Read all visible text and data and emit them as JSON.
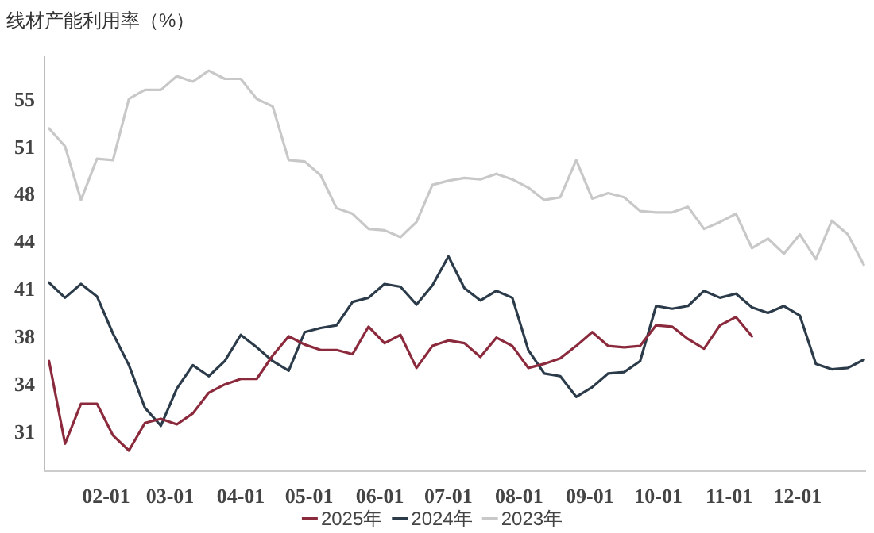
{
  "chart_data": {
    "type": "line",
    "title": "线材产能利用率（%）",
    "x": [
      "--01-07",
      "--01-14",
      "--01-21",
      "--01-28",
      "--02-04",
      "--02-11",
      "--02-18",
      "--02-25",
      "--03-04",
      "--03-11",
      "--03-18",
      "--03-25",
      "--04-01",
      "--04-08",
      "--04-15",
      "--04-22",
      "--04-29",
      "--05-06",
      "--05-13",
      "--05-20",
      "--05-27",
      "--06-03",
      "--06-10",
      "--06-17",
      "--06-24",
      "--07-01",
      "--07-08",
      "--07-15",
      "--07-22",
      "--07-29",
      "--08-05",
      "--08-12",
      "--08-19",
      "--08-26",
      "--09-02",
      "--09-09",
      "--09-16",
      "--09-23",
      "--09-30",
      "--10-07",
      "--10-14",
      "--10-21",
      "--10-28",
      "--11-04",
      "--11-11",
      "--11-18",
      "--11-25",
      "--12-02",
      "--12-09",
      "--12-16",
      "--12-23",
      "--12-30"
    ],
    "series": [
      {
        "name": "2025年",
        "color": "#8b2a3c",
        "values": [
          35.7,
          29.7,
          32.6,
          32.6,
          30.3,
          29.2,
          31.2,
          31.5,
          31.1,
          31.9,
          33.4,
          34.0,
          34.4,
          34.4,
          36.1,
          37.5,
          36.9,
          36.5,
          36.5,
          36.2,
          38.2,
          37.0,
          37.6,
          35.2,
          36.8,
          37.2,
          37.0,
          36.0,
          37.4,
          36.8,
          35.2,
          35.5,
          35.9,
          36.8,
          37.8,
          36.8,
          36.7,
          36.8,
          38.3,
          38.2,
          37.3,
          36.6,
          38.3,
          38.9,
          37.5,
          null,
          null,
          null,
          null,
          null,
          null,
          null
        ]
      },
      {
        "name": "2024年",
        "color": "#2c3b4a",
        "values": [
          41.4,
          40.3,
          41.3,
          40.4,
          37.7,
          35.4,
          32.3,
          31.0,
          33.7,
          35.4,
          34.6,
          35.7,
          37.6,
          36.7,
          35.7,
          35.0,
          37.8,
          38.1,
          38.3,
          40.0,
          40.3,
          41.3,
          41.1,
          39.8,
          41.2,
          43.3,
          41.0,
          40.1,
          40.8,
          40.3,
          36.5,
          34.8,
          34.6,
          33.1,
          33.8,
          34.8,
          34.9,
          35.7,
          39.7,
          39.5,
          39.7,
          40.8,
          40.3,
          40.6,
          39.6,
          39.2,
          39.7,
          39.0,
          35.5,
          35.1,
          35.2,
          35.8
        ]
      },
      {
        "name": "2023年",
        "color": "#c8c8c8",
        "values": [
          52.6,
          51.3,
          47.4,
          50.4,
          50.3,
          54.75,
          55.4,
          55.4,
          56.4,
          56.0,
          56.8,
          56.2,
          56.2,
          54.75,
          54.2,
          50.3,
          50.2,
          49.2,
          46.8,
          46.4,
          45.3,
          45.2,
          44.7,
          45.8,
          48.5,
          48.8,
          49.0,
          48.9,
          49.3,
          48.9,
          48.3,
          47.4,
          47.6,
          50.3,
          47.5,
          47.9,
          47.6,
          46.6,
          46.5,
          46.5,
          46.9,
          45.3,
          45.8,
          46.4,
          43.9,
          44.6,
          43.5,
          44.9,
          43.1,
          45.9,
          44.9,
          42.7
        ]
      }
    ],
    "xlim": [
      "--01-05",
      "--12-31"
    ],
    "xticks": [
      {
        "value": "--02-01",
        "label": "02-01"
      },
      {
        "value": "--03-01",
        "label": "03-01"
      },
      {
        "value": "--04-01",
        "label": "04-01"
      },
      {
        "value": "--05-01",
        "label": "05-01"
      },
      {
        "value": "--06-01",
        "label": "06-01"
      },
      {
        "value": "--07-01",
        "label": "07-01"
      },
      {
        "value": "--08-01",
        "label": "08-01"
      },
      {
        "value": "--09-01",
        "label": "09-01"
      },
      {
        "value": "--10-01",
        "label": "10-01"
      },
      {
        "value": "--11-01",
        "label": "11-01"
      },
      {
        "value": "--12-01",
        "label": "12-01"
      }
    ],
    "ylim": [
      27.7,
      57.9
    ],
    "yticks": [
      {
        "value": 30.6,
        "label": "31"
      },
      {
        "value": 34.05,
        "label": "34"
      },
      {
        "value": 37.5,
        "label": "38"
      },
      {
        "value": 40.95,
        "label": "41"
      },
      {
        "value": 44.4,
        "label": "44"
      },
      {
        "value": 47.85,
        "label": "48"
      },
      {
        "value": 51.3,
        "label": "51"
      },
      {
        "value": 54.75,
        "label": "55"
      }
    ],
    "grid": false,
    "legend": "bottom",
    "marker": "none",
    "line_style": "solid"
  }
}
